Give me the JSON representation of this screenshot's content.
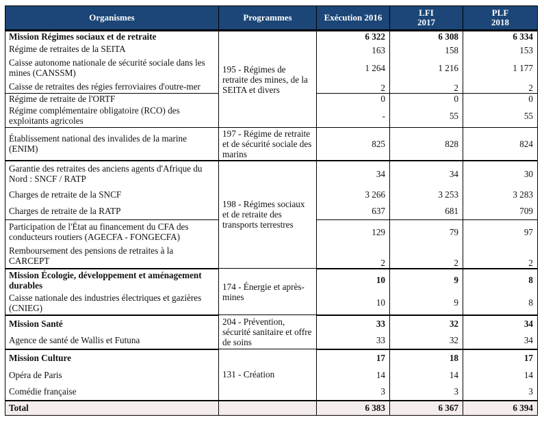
{
  "header": {
    "organismes": "Organismes",
    "programmes": "Programmes",
    "exec": "Exécution 2016",
    "lfi": "LFI 2017",
    "plf": "PLF 2018"
  },
  "groups": [
    {
      "programme": "195 - Régimes de retraite des mines, de la SEITA et divers",
      "rows": [
        {
          "org": "Mission Régimes sociaux et de retraite",
          "bold": true,
          "values": [
            "6 322",
            "6 308",
            "6 334"
          ]
        },
        {
          "org": "Régime de retraites de la SEITA",
          "values": [
            "163",
            "158",
            "153"
          ]
        },
        {
          "org": "Caisse autonome nationale de sécurité sociale dans les mines (CANSSM)",
          "values": [
            "1 264",
            "1 216",
            "1 177"
          ]
        },
        {
          "org": "Caisse de retraites des régies ferroviaires d'outre-mer",
          "values": [
            "2",
            "2",
            "2"
          ]
        },
        {
          "org": "Régime de retraite de l'ORTF",
          "values": [
            "0",
            "0",
            "0"
          ]
        },
        {
          "org": "Régime complémentaire obligatoire (RCO) des exploitants agricoles",
          "values": [
            "-",
            "55",
            "55"
          ]
        }
      ]
    },
    {
      "programme": "197 - Régime de retraite et de sécurité sociale des marins",
      "rows": [
        {
          "org": "Établissement national des invalides de la marine (ENIM)",
          "values": [
            "825",
            "828",
            "824"
          ]
        }
      ]
    },
    {
      "programme": "198 - Régimes sociaux et de retraite des transports terrestres",
      "rows": [
        {
          "org": "Garantie des retraites des anciens agents d'Afrique du Nord : SNCF / RATP",
          "values": [
            "34",
            "34",
            "30"
          ]
        },
        {
          "org": "Charges de retraite de la SNCF",
          "values": [
            "3 266",
            "3 253",
            "3 283"
          ]
        },
        {
          "org": "Charges de retraite de la RATP",
          "values": [
            "637",
            "681",
            "709"
          ]
        },
        {
          "org": "Participation de l'État au financement du CFA des conducteurs routiers (AGECFA - FONGECFA)",
          "values": [
            "129",
            "79",
            "97"
          ]
        },
        {
          "org": "Remboursement des pensions de retraites à la CARCEPT",
          "values": [
            "2",
            "2",
            "2"
          ]
        }
      ]
    },
    {
      "programme": "174 - Énergie et après-mines",
      "rows": [
        {
          "org": "Mission Écologie, développement et aménagement durables",
          "bold": true,
          "values": [
            "10",
            "9",
            "8"
          ]
        },
        {
          "org": "Caisse nationale des industries électriques et gazières (CNIEG)",
          "values": [
            "10",
            "9",
            "8"
          ]
        }
      ]
    },
    {
      "programme": "204 - Prévention, sécurité sanitaire et offre de soins",
      "rows": [
        {
          "org": "Mission Santé",
          "bold": true,
          "values": [
            "33",
            "32",
            "34"
          ]
        },
        {
          "org": "Agence de santé de Wallis et Futuna",
          "values": [
            "33",
            "32",
            "34"
          ]
        }
      ]
    },
    {
      "programme": "131 - Création",
      "rows": [
        {
          "org": "Mission Culture",
          "bold": true,
          "values": [
            "17",
            "18",
            "17"
          ]
        },
        {
          "org": "Opéra de Paris",
          "values": [
            "14",
            "14",
            "14"
          ]
        },
        {
          "org": "Comédie française",
          "values": [
            "3",
            "3",
            "3"
          ]
        }
      ]
    }
  ],
  "total": {
    "label": "Total",
    "values": [
      "6 383",
      "6 367",
      "6 394"
    ]
  },
  "colors": {
    "header_bg": "#1b4677",
    "total_bg": "#f5ecec"
  }
}
